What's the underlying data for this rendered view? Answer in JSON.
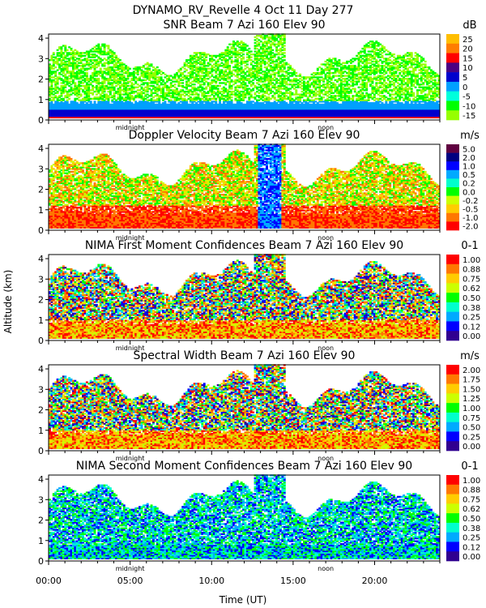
{
  "header": {
    "title": "DYNAMO_RV_Revelle    4 Oct 11 Day 277"
  },
  "axes": {
    "ylabel": "Altitude (km)",
    "xlabel": "Time (UT)",
    "xticks": [
      "00:00",
      "05:00",
      "10:00",
      "15:00",
      "20:00"
    ],
    "xtick_hours": [
      0,
      5,
      10,
      15,
      20
    ],
    "xlim_hours": [
      0,
      24
    ],
    "yticks": [
      "0",
      "1",
      "2",
      "3",
      "4"
    ],
    "ylim_km": [
      0,
      4.2
    ],
    "markers": [
      {
        "label": "midnight",
        "hour": 5.0
      },
      {
        "label": "noon",
        "hour": 17.0
      }
    ]
  },
  "chart_data": [
    {
      "type": "heatmap",
      "title": "SNR Beam 7 Azi 160 Elev 90",
      "units": "dB",
      "colorbar_ticks": [
        "25",
        "20",
        "15",
        "10",
        "5",
        "0",
        "-5",
        "-10",
        "-15"
      ],
      "colorbar_colors": [
        "#ffbe00",
        "#ff7d00",
        "#ff0000",
        "#4b0082",
        "#0000cd",
        "#00a0ff",
        "#00ffdc",
        "#00ff00",
        "#96ff00"
      ],
      "xlabel": "",
      "ylabel": "Altitude (km)",
      "xlim": [
        0,
        24
      ],
      "ylim": [
        0,
        4.2
      ]
    },
    {
      "type": "heatmap",
      "title": "Doppler Velocity Beam 7 Azi 160 Elev 90",
      "units": "m/s",
      "colorbar_ticks": [
        "5.0",
        "2.0",
        "1.0",
        "0.5",
        "0.2",
        "0.0",
        "-0.2",
        "-0.5",
        "-1.0",
        "-2.0"
      ],
      "colorbar_colors": [
        "#600040",
        "#000080",
        "#0000ff",
        "#00aaff",
        "#00ffcc",
        "#00ff00",
        "#ccff00",
        "#ffcc00",
        "#ff7700",
        "#ff0000"
      ],
      "xlabel": "",
      "ylabel": "Altitude (km)",
      "xlim": [
        0,
        24
      ],
      "ylim": [
        0,
        4.2
      ]
    },
    {
      "type": "heatmap",
      "title": "NIMA First Moment Confidences Beam 7 Azi 160 Elev 90",
      "units": "0-1",
      "colorbar_ticks": [
        "1.00",
        "0.88",
        "0.75",
        "0.62",
        "0.50",
        "0.38",
        "0.25",
        "0.12",
        "0.00"
      ],
      "colorbar_colors": [
        "#ff0000",
        "#ff7700",
        "#ffcc00",
        "#ccff00",
        "#00ff00",
        "#00ffcc",
        "#00aaff",
        "#0000ff",
        "#300090"
      ],
      "xlabel": "",
      "ylabel": "Altitude (km)",
      "xlim": [
        0,
        24
      ],
      "ylim": [
        0,
        4.2
      ]
    },
    {
      "type": "heatmap",
      "title": "Spectral Width Beam 7 Azi 160 Elev 90",
      "units": "m/s",
      "colorbar_ticks": [
        "2.00",
        "1.75",
        "1.50",
        "1.25",
        "1.00",
        "0.75",
        "0.50",
        "0.25",
        "0.00"
      ],
      "colorbar_colors": [
        "#ff0000",
        "#ff7700",
        "#ffcc00",
        "#ccff00",
        "#00ff00",
        "#00ffcc",
        "#00aaff",
        "#0000ff",
        "#300090"
      ],
      "xlabel": "",
      "ylabel": "Altitude (km)",
      "xlim": [
        0,
        24
      ],
      "ylim": [
        0,
        4.2
      ]
    },
    {
      "type": "heatmap",
      "title": "NIMA Second Moment Confidences Beam 7 Azi 160 Elev 90",
      "units": "0-1",
      "colorbar_ticks": [
        "1.00",
        "0.88",
        "0.75",
        "0.62",
        "0.50",
        "0.38",
        "0.25",
        "0.12",
        "0.00"
      ],
      "colorbar_colors": [
        "#ff0000",
        "#ff7700",
        "#ffcc00",
        "#ccff00",
        "#00ff00",
        "#00ffcc",
        "#00aaff",
        "#0000ff",
        "#300090"
      ],
      "xlabel": "Time (UT)",
      "ylabel": "Altitude (km)",
      "xlim": [
        0,
        24
      ],
      "ylim": [
        0,
        4.2
      ]
    }
  ]
}
